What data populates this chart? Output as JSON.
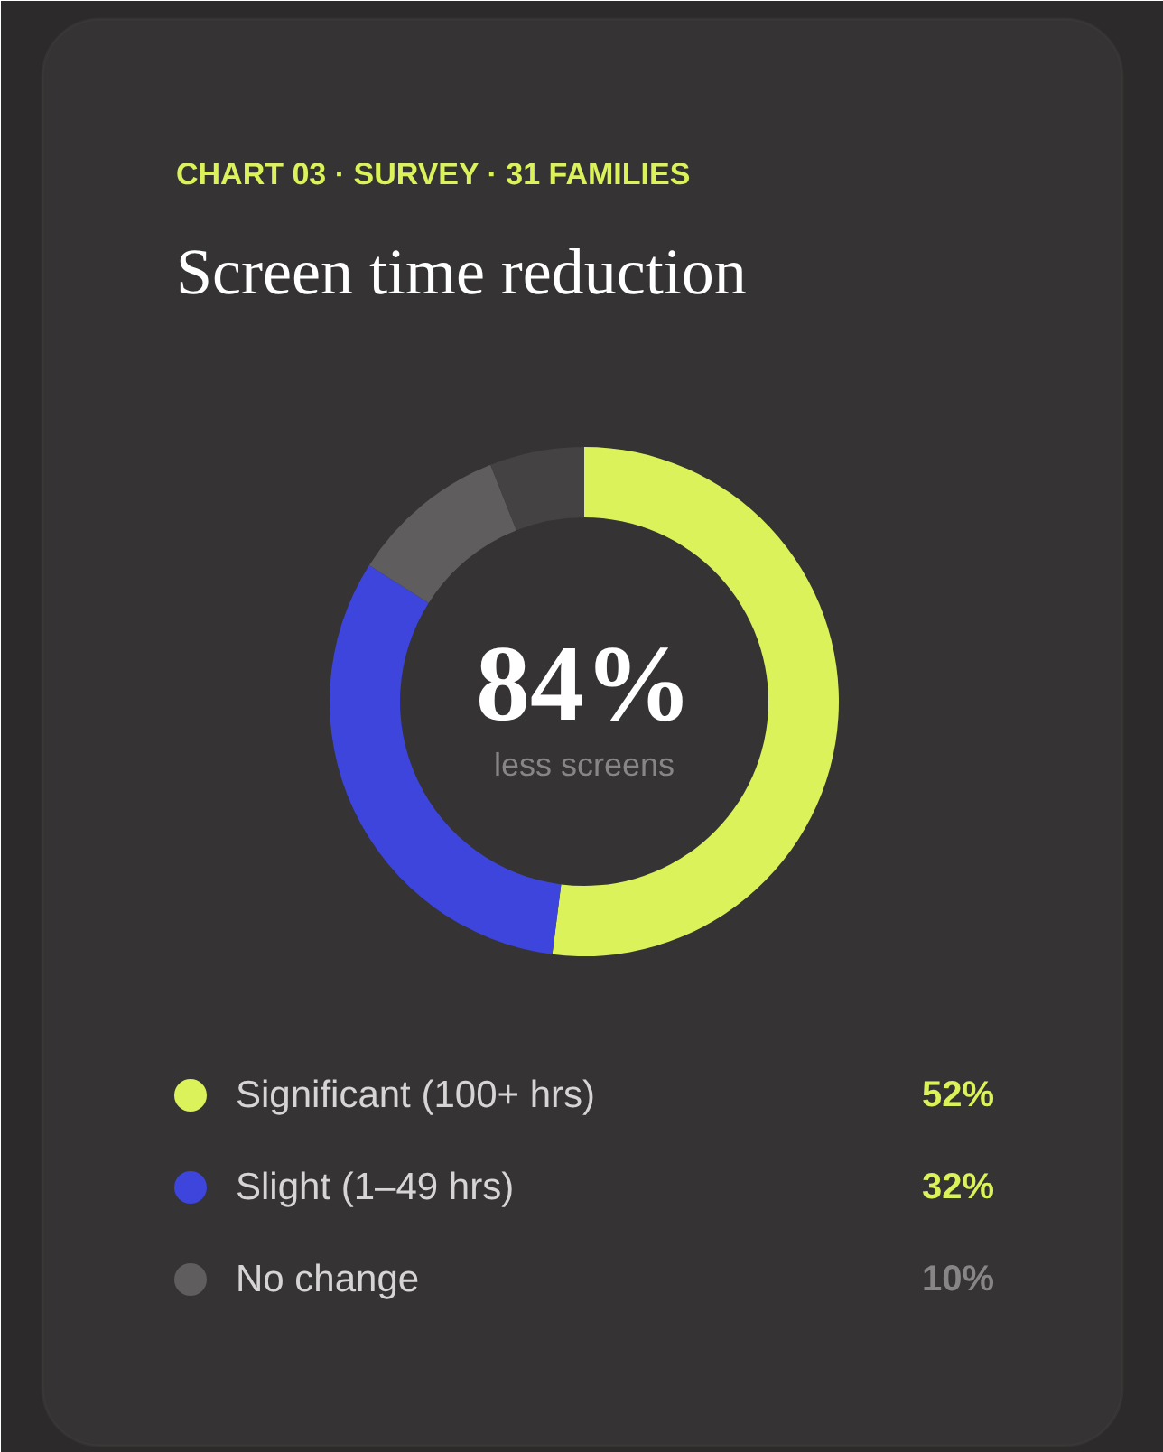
{
  "chart_data": {
    "type": "donut",
    "subtitle": "CHART 03 · SURVEY · 31 FAMILIES",
    "title": "Screen time reduction",
    "categories": [
      "Significant (100+ hrs)",
      "Slight (1–49 hrs)",
      "No change",
      null
    ],
    "values": [
      52,
      32,
      10,
      6
    ],
    "colors": [
      "#dbf25a",
      "#3d45dd",
      "#5f5d5d",
      "#444242"
    ],
    "value_labels": [
      "52%",
      "32%",
      "10%",
      null
    ],
    "annotations": [
      "84%",
      "less screens"
    ],
    "legend": "bottom"
  }
}
